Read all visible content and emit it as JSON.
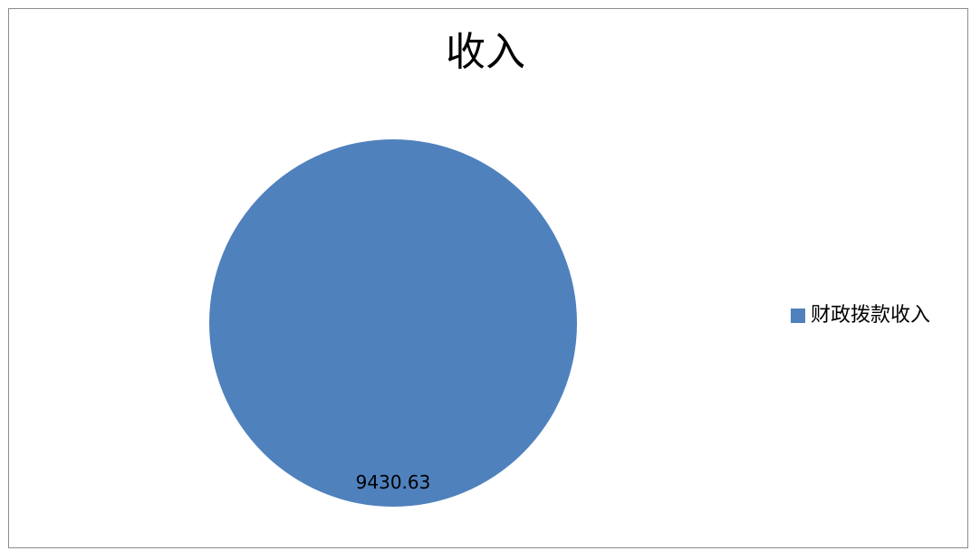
{
  "chart_data": {
    "type": "pie",
    "title": "收入",
    "slices": [
      {
        "label": "财政拨款收入",
        "value": 9430.63,
        "value_label": "9430.63",
        "color": "#4f81bd"
      }
    ],
    "legend_position": "right"
  }
}
